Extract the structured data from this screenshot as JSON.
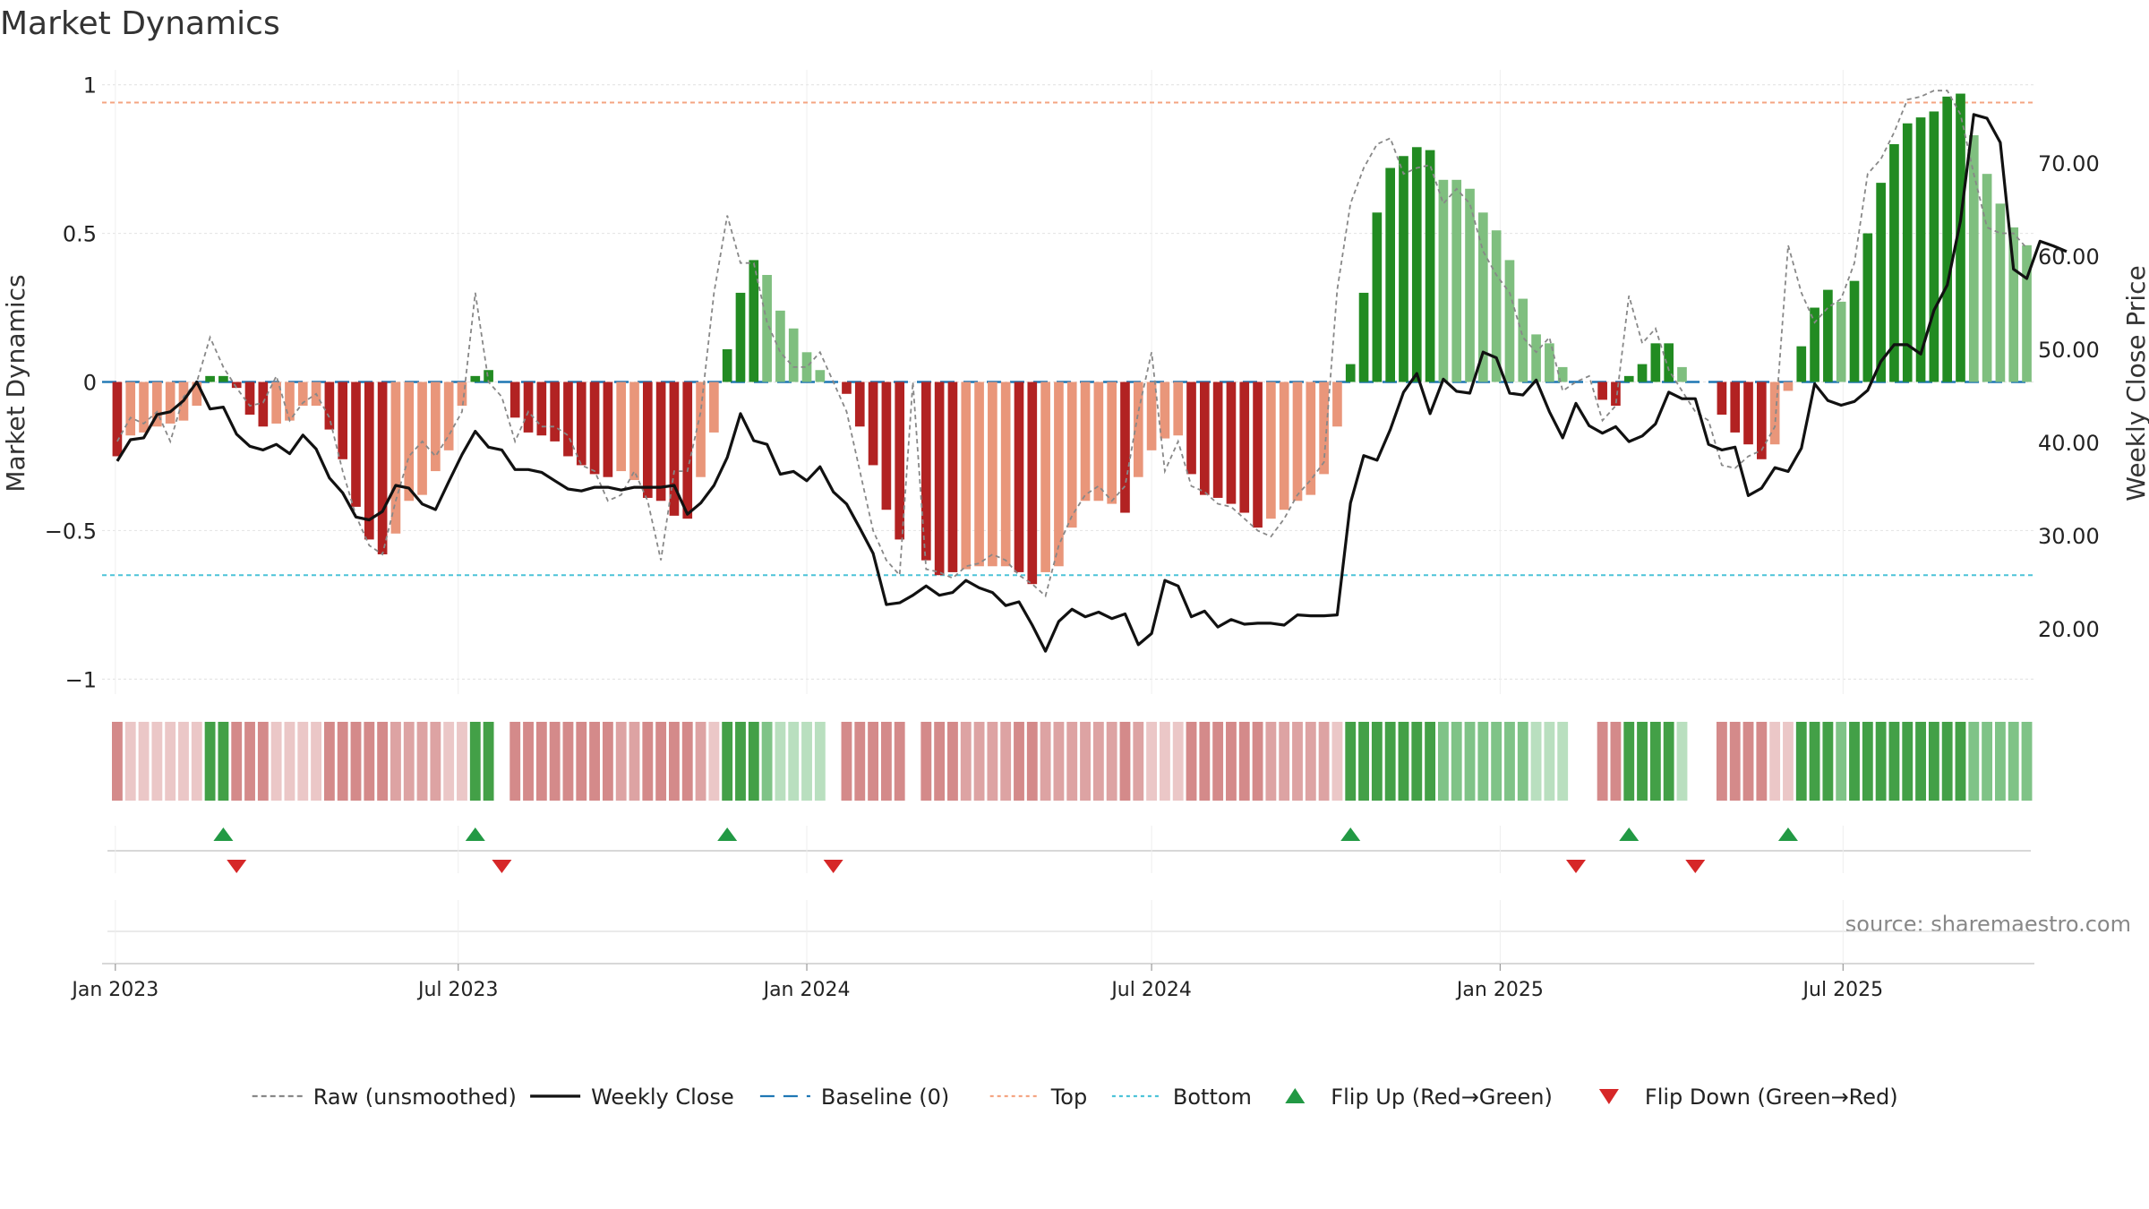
{
  "chart_data": {
    "type": "bar",
    "title": "Market Dynamics",
    "ylabel": "Market Dynamics",
    "y2label": "Weekly Close Price",
    "source": "source: sharemaestro.com",
    "x_start": "2023-01-02",
    "x_step_days": 7,
    "x_ticks": [
      "Jan 2023",
      "Jul 2023",
      "Jan 2024",
      "Jul 2024",
      "Jan 2025",
      "Jul 2025"
    ],
    "x_tick_dates": [
      "2023-01-01",
      "2023-07-01",
      "2024-01-01",
      "2024-07-01",
      "2025-01-01",
      "2025-07-01"
    ],
    "x_range": [
      "2022-12-25",
      "2025-10-10"
    ],
    "ylim": [
      -1.05,
      1.05
    ],
    "yticks": [
      -1,
      -0.5,
      0,
      0.5,
      1
    ],
    "ytick_labels": [
      "−1",
      "−0.5",
      "0",
      "0.5",
      "1"
    ],
    "y2lim": [
      13,
      80
    ],
    "y2ticks": [
      20,
      30,
      40,
      50,
      60,
      70
    ],
    "y2tick_labels": [
      "20.00",
      "30.00",
      "40.00",
      "50.00",
      "60.00",
      "70.00"
    ],
    "top_line": 0.94,
    "bottom_line": -0.65,
    "baseline": 0,
    "grid": true,
    "legend_position": "bottom-center",
    "colors": {
      "strong_green": "#228B22",
      "light_green": "#7FBF7F",
      "strong_red": "#B22222",
      "light_red": "#E9967A",
      "close_line": "#111111",
      "raw_line": "#888888",
      "baseline": "#1F77B4",
      "top": "#F4A582",
      "bottom": "#4DC3D8",
      "flip_up": "#229944",
      "flip_down": "#D62728"
    },
    "series": [
      {
        "name": "Market Dynamics",
        "kind": "bar",
        "values": [
          -0.25,
          -0.18,
          -0.17,
          -0.15,
          -0.14,
          -0.13,
          -0.08,
          0.02,
          0.02,
          -0.02,
          -0.11,
          -0.15,
          -0.14,
          -0.13,
          -0.08,
          -0.08,
          -0.16,
          -0.26,
          -0.42,
          -0.53,
          -0.58,
          -0.51,
          -0.4,
          -0.38,
          -0.3,
          -0.23,
          -0.08,
          0.02,
          0.04,
          0,
          -0.12,
          -0.17,
          -0.18,
          -0.2,
          -0.25,
          -0.28,
          -0.31,
          -0.32,
          -0.3,
          -0.33,
          -0.39,
          -0.4,
          -0.45,
          -0.46,
          -0.32,
          -0.17,
          0.11,
          0.3,
          0.41,
          0.36,
          0.24,
          0.18,
          0.1,
          0.04,
          0,
          -0.04,
          -0.15,
          -0.28,
          -0.43,
          -0.53,
          0,
          -0.6,
          -0.65,
          -0.64,
          -0.63,
          -0.62,
          -0.62,
          -0.62,
          -0.64,
          -0.68,
          -0.64,
          -0.62,
          -0.49,
          -0.4,
          -0.4,
          -0.41,
          -0.44,
          -0.32,
          -0.23,
          -0.19,
          -0.18,
          -0.31,
          -0.38,
          -0.39,
          -0.41,
          -0.44,
          -0.49,
          -0.46,
          -0.43,
          -0.4,
          -0.38,
          -0.31,
          -0.15,
          0.06,
          0.3,
          0.57,
          0.72,
          0.76,
          0.79,
          0.78,
          0.68,
          0.68,
          0.65,
          0.57,
          0.51,
          0.41,
          0.28,
          0.16,
          0.13,
          0.05,
          0,
          0,
          -0.06,
          -0.08,
          0.02,
          0.06,
          0.13,
          0.13,
          0.05,
          0,
          0,
          -0.11,
          -0.17,
          -0.21,
          -0.26,
          -0.21,
          -0.03,
          0.12,
          0.25,
          0.31,
          0.27,
          0.34,
          0.5,
          0.67,
          0.8,
          0.87,
          0.89,
          0.91,
          0.96,
          0.97,
          0.83,
          0.7,
          0.6,
          0.52,
          0.46
        ],
        "strong_flags": [
          1,
          0,
          0,
          0,
          0,
          0,
          0,
          1,
          1,
          1,
          1,
          1,
          0,
          0,
          0,
          0,
          1,
          1,
          1,
          1,
          1,
          0,
          0,
          0,
          0,
          0,
          0,
          1,
          1,
          1,
          1,
          1,
          1,
          1,
          1,
          1,
          1,
          1,
          0,
          0,
          1,
          1,
          1,
          1,
          0,
          0,
          1,
          1,
          1,
          0,
          0,
          0,
          0,
          0,
          0,
          1,
          1,
          1,
          1,
          1,
          0,
          1,
          1,
          1,
          0,
          0,
          0,
          0,
          1,
          1,
          0,
          0,
          0,
          0,
          0,
          0,
          1,
          0,
          0,
          0,
          0,
          1,
          1,
          1,
          1,
          1,
          1,
          0,
          0,
          0,
          0,
          0,
          0,
          1,
          1,
          1,
          1,
          1,
          1,
          1,
          0,
          0,
          0,
          0,
          0,
          0,
          0,
          0,
          0,
          0,
          0,
          0,
          1,
          1,
          1,
          1,
          1,
          1,
          0,
          0,
          0,
          1,
          1,
          1,
          1,
          0,
          0,
          1,
          1,
          1,
          0,
          1,
          1,
          1,
          1,
          1,
          1,
          1,
          1,
          1,
          0,
          0,
          0,
          0,
          0
        ]
      },
      {
        "name": "Raw (unsmoothed)",
        "kind": "line",
        "values": [
          -0.2,
          -0.12,
          -0.14,
          -0.1,
          -0.2,
          -0.05,
          0.0,
          0.15,
          0.05,
          -0.02,
          -0.08,
          -0.07,
          0.02,
          -0.13,
          -0.07,
          -0.04,
          -0.12,
          -0.3,
          -0.45,
          -0.55,
          -0.58,
          -0.4,
          -0.25,
          -0.2,
          -0.25,
          -0.18,
          -0.1,
          0.3,
          0.0,
          -0.05,
          -0.2,
          -0.1,
          -0.15,
          -0.15,
          -0.18,
          -0.28,
          -0.3,
          -0.4,
          -0.38,
          -0.3,
          -0.4,
          -0.6,
          -0.3,
          -0.3,
          -0.1,
          0.3,
          0.56,
          0.4,
          0.4,
          0.2,
          0.1,
          0.05,
          0.05,
          0.1,
          0.0,
          -0.1,
          -0.3,
          -0.5,
          -0.6,
          -0.65,
          0,
          -0.63,
          -0.64,
          -0.66,
          -0.62,
          -0.61,
          -0.58,
          -0.6,
          -0.65,
          -0.68,
          -0.72,
          -0.55,
          -0.45,
          -0.38,
          -0.35,
          -0.4,
          -0.35,
          -0.1,
          0.1,
          -0.3,
          -0.2,
          -0.35,
          -0.37,
          -0.41,
          -0.42,
          -0.46,
          -0.5,
          -0.52,
          -0.46,
          -0.38,
          -0.33,
          -0.27,
          0.31,
          0.6,
          0.72,
          0.8,
          0.82,
          0.7,
          0.72,
          0.73,
          0.6,
          0.65,
          0.6,
          0.44,
          0.36,
          0.3,
          0.15,
          0.1,
          0.15,
          -0.03,
          0.0,
          0.02,
          -0.13,
          -0.08,
          0.29,
          0.13,
          0.18,
          0.04,
          -0.03,
          -0.1,
          -0.13,
          -0.28,
          -0.29,
          -0.25,
          -0.23,
          -0.15,
          0.46,
          0.3,
          0.2,
          0.25,
          0.28,
          0.4,
          0.7,
          0.75,
          0.84,
          0.95,
          0.96,
          0.98,
          0.98,
          0.9,
          0.7,
          0.52,
          0.5,
          0.5,
          0.45
        ]
      },
      {
        "name": "Weekly Close",
        "kind": "line",
        "axis": "right",
        "values": [
          38,
          40.3,
          40.5,
          43,
          43.3,
          44.5,
          46.5,
          43.6,
          43.8,
          40.9,
          39.6,
          39.2,
          39.8,
          38.8,
          40.8,
          39.3,
          36.2,
          34.6,
          32,
          31.7,
          32.6,
          35.4,
          35.1,
          33.4,
          32.8,
          35.8,
          38.7,
          41.2,
          39.5,
          39.2,
          37.1,
          37.1,
          36.8,
          35.9,
          35,
          34.8,
          35.2,
          35.2,
          34.9,
          35.2,
          35.2,
          35.2,
          35.4,
          32.3,
          33.5,
          35.4,
          38.4,
          43.1,
          40.2,
          39.8,
          36.6,
          36.9,
          35.9,
          37.4,
          34.7,
          33.4,
          30.8,
          28.1,
          22.6,
          22.8,
          23.6,
          24.6,
          23.6,
          23.9,
          25.2,
          24.4,
          23.9,
          22.5,
          22.9,
          20.4,
          17.6,
          20.8,
          22.1,
          21.3,
          21.8,
          21.1,
          21.6,
          18.3,
          19.5,
          25.2,
          24.6,
          21.3,
          21.9,
          20.2,
          21,
          20.5,
          20.6,
          20.6,
          20.4,
          21.5,
          21.4,
          21.4,
          21.5,
          33.5,
          38.6,
          38.1,
          41.4,
          45.4,
          47.4,
          43.1,
          46.8,
          45.5,
          45.3,
          49.7,
          49.1,
          45.3,
          45.1,
          46.7,
          43.3,
          40.5,
          44.2,
          41.8,
          41,
          41.7,
          40.1,
          40.7,
          42,
          45.4,
          44.7,
          44.7,
          39.8,
          39.2,
          39.5,
          34.3,
          35.1,
          37.3,
          36.9,
          39.4,
          46.3,
          44.5,
          44,
          44.4,
          45.6,
          48.7,
          50.5,
          50.5,
          49.5,
          54.2,
          56.9,
          63.8,
          75.2,
          74.8,
          72.2,
          58.6,
          57.6,
          61.6,
          61.1,
          60.5
        ]
      }
    ],
    "regime_strip": [
      0.2,
      0.2,
      0.2,
      0.2,
      0.2,
      0.2,
      0.2,
      0.2,
      0.2,
      0.2,
      0.2,
      0.2,
      0.2,
      0.2,
      0.2,
      0.2,
      0.2,
      0.2,
      0.2,
      0.2,
      0.2,
      0.2,
      0.2,
      0.2,
      0.2,
      0.2,
      0.2,
      0.2,
      0.2,
      0.2,
      0.2,
      0.2,
      0.2,
      0.2,
      0.2,
      0.2,
      0.2,
      0.2,
      0.2,
      0.2,
      0.2,
      0.2,
      0.2,
      0.2,
      0.2,
      0.2,
      0.2,
      0.2,
      0.2,
      0.2,
      0.2,
      0.2,
      0.2,
      0.2,
      0.2,
      0.2,
      0.2,
      0.2,
      0.2,
      0.2,
      0,
      0.2,
      0.2,
      0.2,
      0.2,
      0.2,
      0.2,
      0.2,
      0.2,
      0.2,
      0.2,
      0.2,
      0.2,
      0.2,
      0.2,
      0.2,
      0.2,
      0.2,
      0.2,
      0.2,
      0.2,
      0.2,
      0.2,
      0.2,
      0.2,
      0.2,
      0.2,
      0.2,
      0.2,
      0.2,
      0.2,
      0.2,
      0.2,
      0.2,
      0.2,
      0.2,
      0.2,
      0.2,
      0.2,
      0.2,
      0.2,
      0.2,
      0.2,
      0.2,
      0.2,
      0.2,
      0.2,
      0.2,
      0.2,
      0.2,
      0.2,
      0.2,
      0.2,
      0.2,
      0.2,
      0.2,
      0.2,
      0.2,
      0.2,
      0.2,
      0.2,
      0.2,
      0.2,
      0.2,
      0.2,
      0.2,
      0.2,
      0.2,
      0.2,
      0.2,
      0.2,
      0.2,
      0.2,
      0.2,
      0.2,
      0.2,
      0.2,
      0.2,
      0.2,
      0.2,
      0.2,
      0.2,
      0.2,
      0.2,
      0.2,
      0.2,
      0.2
    ],
    "flip_up_weeks": [
      8,
      27,
      46,
      93,
      114,
      126
    ],
    "flip_down_weeks": [
      9,
      29,
      54,
      110,
      119
    ],
    "legend": [
      {
        "label": "Raw (unsmoothed)",
        "kind": "dashed",
        "color": "#888888"
      },
      {
        "label": "Weekly Close",
        "kind": "solid",
        "color": "#111111"
      },
      {
        "label": "Baseline (0)",
        "kind": "longdash",
        "color": "#1F77B4"
      },
      {
        "label": "Top",
        "kind": "dotted",
        "color": "#F4A582"
      },
      {
        "label": "Bottom",
        "kind": "dotted",
        "color": "#4DC3D8"
      },
      {
        "label": "Flip Up (Red→Green)",
        "kind": "up",
        "color": "#229944"
      },
      {
        "label": "Flip Down (Green→Red)",
        "kind": "down",
        "color": "#D62728"
      }
    ]
  }
}
